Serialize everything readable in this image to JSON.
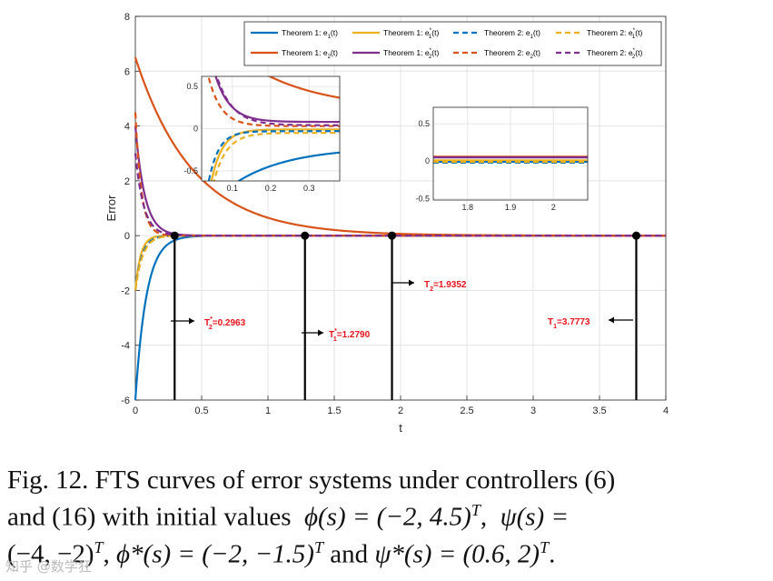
{
  "chart_data": {
    "type": "line",
    "xlabel": "t",
    "ylabel": "Error",
    "xlim": [
      0,
      4
    ],
    "ylim": [
      -6,
      8
    ],
    "xticks": [
      "0",
      "0.5",
      "1",
      "1.5",
      "2",
      "2.5",
      "3",
      "3.5",
      "4"
    ],
    "yticks": [
      "-6",
      "-4",
      "-2",
      "0",
      "2",
      "4",
      "6",
      "8"
    ],
    "grid": true,
    "legend_position": "top-right",
    "series": [
      {
        "name": "Theorem 1: e1(t)",
        "color": "#0072bd",
        "style": "solid",
        "initial": -6,
        "rate": 12
      },
      {
        "name": "Theorem 1: e1*(t)",
        "color": "#edb120",
        "style": "solid",
        "initial": -2,
        "rate": 25
      },
      {
        "name": "Theorem 2: e1(t)",
        "color": "#0072bd",
        "style": "dashed",
        "initial": -2,
        "rate": 20
      },
      {
        "name": "Theorem 2: e1*(t)",
        "color": "#edb120",
        "style": "dashed",
        "initial": -2,
        "rate": 18
      },
      {
        "name": "Theorem 1: e2(t)",
        "color": "#d95319",
        "style": "solid",
        "initial": 6.5,
        "rate": 2.3
      },
      {
        "name": "Theorem 1: e2*(t)",
        "color": "#7e2f8e",
        "style": "solid",
        "initial": 4,
        "rate": 14
      },
      {
        "name": "Theorem 2: e2(t)",
        "color": "#d95319",
        "style": "dashed",
        "initial": 4.5,
        "rate": 22
      },
      {
        "name": "Theorem 2: e2*(t)",
        "color": "#7e2f8e",
        "style": "dashed",
        "initial": 3,
        "rate": 16
      }
    ],
    "settling_times": [
      {
        "label": "T2*=0.2963",
        "main": "T",
        "sup": "*",
        "sub": "2",
        "value": "=0.2963",
        "t": 0.2963,
        "arrow": "right"
      },
      {
        "label": "T1*=1.2790",
        "main": "T",
        "sup": "*",
        "sub": "1",
        "value": "=1.2790",
        "t": 1.279,
        "arrow": "right"
      },
      {
        "label": "T2=1.9352",
        "main": "T",
        "sup": "",
        "sub": "2",
        "value": "=1.9352",
        "t": 1.9352,
        "arrow": "right"
      },
      {
        "label": "T1=3.7773",
        "main": "T",
        "sup": "",
        "sub": "1",
        "value": "=3.7773",
        "t": 3.7773,
        "arrow": "left"
      }
    ],
    "inset_left": {
      "xlim": [
        0.02,
        0.38
      ],
      "ylim": [
        -0.62,
        0.62
      ],
      "xticks": [
        "0.1",
        "0.2",
        "0.3"
      ],
      "yticks": [
        "-0.5",
        "0",
        "0.5"
      ]
    },
    "inset_right": {
      "xlim": [
        1.72,
        2.08
      ],
      "ylim": [
        -0.52,
        0.72
      ],
      "xticks": [
        "1.8",
        "1.9",
        "2"
      ],
      "yticks": [
        "-0.5",
        "0",
        "0.5"
      ]
    }
  },
  "caption": {
    "line1": "Fig. 12. FTS curves of error systems under controllers (6)",
    "line2_text": "and (16) with initial values",
    "phi": "ϕ(s) = (−2, 4.5)",
    "psi": "ψ(s) =",
    "line3a": "(−4, −2)",
    "phi_star": "ϕ*(s) = (−2, −1.5)",
    "and": "and",
    "psi_star": "ψ*(s) = (0.6, 2)",
    "sup_T": "T"
  },
  "watermark": "知乎 @数学狂"
}
